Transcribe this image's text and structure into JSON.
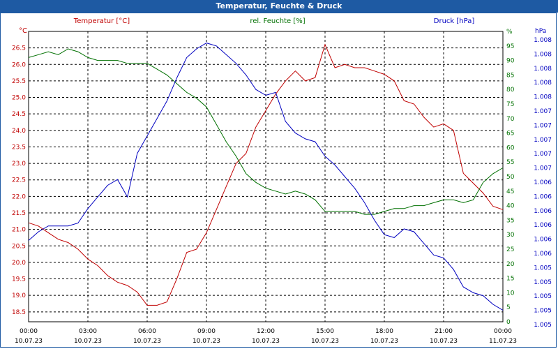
{
  "window": {
    "title": "Temperatur, Feuchte & Druck"
  },
  "colors": {
    "temperature": "#c00000",
    "humidity": "#007000",
    "pressure": "#0000c0",
    "titlebar": "#1e5aa3",
    "grid": "#000000"
  },
  "chart_data": {
    "type": "line",
    "title": "",
    "grid": true,
    "x_axis": {
      "ticks": [
        {
          "time": "00:00",
          "date": "10.07.23"
        },
        {
          "time": "03:00",
          "date": "10.07.23"
        },
        {
          "time": "06:00",
          "date": "10.07.23"
        },
        {
          "time": "09:00",
          "date": "10.07.23"
        },
        {
          "time": "12:00",
          "date": "10.07.23"
        },
        {
          "time": "15:00",
          "date": "10.07.23"
        },
        {
          "time": "18:00",
          "date": "10.07.23"
        },
        {
          "time": "21:00",
          "date": "10.07.23"
        },
        {
          "time": "00:00",
          "date": "11.07.23"
        }
      ],
      "range_hours": [
        0,
        24
      ]
    },
    "axes": {
      "temperature": {
        "unit": "°C",
        "min": 18.2,
        "max": 27.0,
        "ticks": [
          "18.5",
          "19.0",
          "19.5",
          "20.0",
          "20.5",
          "21.0",
          "21.5",
          "22.0",
          "22.5",
          "23.0",
          "23.5",
          "24.0",
          "24.5",
          "25.0",
          "25.5",
          "26.0",
          "26.5"
        ]
      },
      "humidity": {
        "unit": "%",
        "min": 0,
        "max": 100,
        "ticks": [
          "0",
          "5",
          "10",
          "15",
          "20",
          "25",
          "30",
          "35",
          "40",
          "45",
          "50",
          "55",
          "60",
          "65",
          "70",
          "75",
          "80",
          "85",
          "90",
          "95",
          "%"
        ]
      },
      "pressure": {
        "unit": "hPa",
        "ticks": [
          "1.005",
          "1.005",
          "1.005",
          "1.005",
          "1.005",
          "1.006",
          "1.006",
          "1.006",
          "1.006",
          "1.006",
          "1.006",
          "1.007",
          "1.007",
          "1.007",
          "1.007",
          "1.007",
          "1.008",
          "1.008",
          "1.008",
          "1.008",
          "1.008"
        ]
      }
    },
    "series": [
      {
        "name": "Temperatur [°C]",
        "axis": "temperature",
        "x": [
          0,
          0.5,
          1,
          1.5,
          2,
          2.5,
          3,
          3.5,
          4,
          4.5,
          5,
          5.5,
          6,
          6.5,
          7,
          7.5,
          8,
          8.5,
          9,
          9.5,
          10,
          10.5,
          11,
          11.5,
          12,
          12.5,
          13,
          13.5,
          14,
          14.5,
          15,
          15.5,
          16,
          16.5,
          17,
          17.5,
          18,
          18.5,
          19,
          19.5,
          20,
          20.5,
          21,
          21.5,
          22,
          22.5,
          23,
          23.5,
          24
        ],
        "y": [
          21.2,
          21.1,
          20.9,
          20.7,
          20.6,
          20.4,
          20.1,
          19.9,
          19.6,
          19.4,
          19.3,
          19.1,
          18.7,
          18.7,
          18.8,
          19.5,
          20.3,
          20.4,
          20.9,
          21.6,
          22.3,
          23.0,
          23.3,
          24.1,
          24.6,
          25.1,
          25.5,
          25.8,
          25.5,
          25.6,
          26.6,
          25.9,
          26.0,
          25.9,
          25.9,
          25.8,
          25.7,
          25.5,
          24.9,
          24.8,
          24.4,
          24.1,
          24.2,
          24.0,
          22.7,
          22.4,
          22.1,
          21.7,
          21.6
        ]
      },
      {
        "name": "rel. Feuchte [%]",
        "axis": "humidity",
        "x": [
          0,
          0.5,
          1,
          1.5,
          2,
          2.5,
          3,
          3.5,
          4,
          4.5,
          5,
          5.5,
          6,
          6.5,
          7,
          7.5,
          8,
          8.5,
          9,
          9.5,
          10,
          10.5,
          11,
          11.5,
          12,
          12.5,
          13,
          13.5,
          14,
          14.5,
          15,
          15.5,
          16,
          16.5,
          17,
          17.5,
          18,
          18.5,
          19,
          19.5,
          20,
          20.5,
          21,
          21.5,
          22,
          22.5,
          23,
          23.5,
          24
        ],
        "y": [
          91,
          92,
          93,
          92,
          94,
          93,
          91,
          90,
          90,
          90,
          89,
          89,
          89,
          87,
          85,
          82,
          79,
          77,
          74,
          68,
          62,
          57,
          51,
          48,
          46,
          45,
          44,
          45,
          44,
          42,
          38,
          38,
          38,
          38,
          37,
          37,
          38,
          39,
          39,
          40,
          40,
          41,
          42,
          42,
          41,
          42,
          48,
          51,
          53
        ]
      },
      {
        "name": "Druck [hPa]",
        "axis": "pressure",
        "x": [
          0,
          0.5,
          1,
          1.5,
          2,
          2.5,
          3,
          3.5,
          4,
          4.5,
          5,
          5.5,
          6,
          6.5,
          7,
          7.5,
          8,
          8.5,
          9,
          9.5,
          10,
          10.5,
          11,
          11.5,
          12,
          12.5,
          13,
          13.5,
          14,
          14.5,
          15,
          15.5,
          16,
          16.5,
          17,
          17.5,
          18,
          18.5,
          19,
          19.5,
          20,
          20.5,
          21,
          21.5,
          22,
          22.5,
          23,
          23.5,
          24
        ],
        "y": [
          28,
          31,
          33,
          33,
          33,
          34,
          39,
          43,
          47,
          49,
          43,
          58,
          64,
          70,
          76,
          84,
          91,
          94,
          96,
          95,
          92,
          89,
          85,
          80,
          78,
          79,
          69,
          65,
          63,
          62,
          57,
          54,
          50,
          46,
          41,
          35,
          30,
          29,
          32,
          31,
          27,
          23,
          22,
          18,
          12,
          10,
          9,
          6,
          4
        ]
      }
    ]
  }
}
